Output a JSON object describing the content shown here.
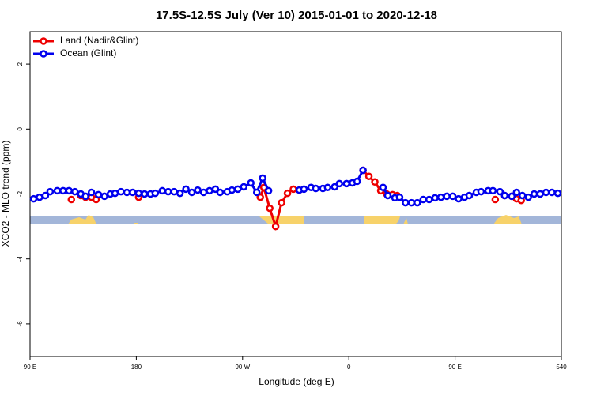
{
  "chart_data": {
    "type": "line",
    "title": "17.5S-12.5S July (Ver 10)   2015-01-01 to 2020-12-18",
    "x_label": "Longitude (deg E)",
    "y_label": "XCO2 - MLO trend (ppm)",
    "xlim": [
      90,
      540
    ],
    "xticks": [
      {
        "value": 90,
        "label": "90 E"
      },
      180,
      {
        "value": 270,
        "label": "90 W"
      },
      {
        "value": 360,
        "label": "0"
      },
      {
        "value": 450,
        "label": "90 E"
      },
      540
    ],
    "ylim": [
      -7,
      3
    ],
    "yticks": [
      -6,
      -4,
      -2,
      0,
      2
    ],
    "legend": "top-left",
    "series": [
      {
        "name": "Land (Nadir&Glint)",
        "color": "#ee0000",
        "x": [
          125,
          null,
          133,
          137,
          142,
          146,
          null,
          182,
          null,
          285,
          288,
          293,
          298,
          303,
          308,
          313,
          318,
          null,
          372,
          377,
          382,
          387,
          392,
          397,
          401,
          null,
          484,
          null,
          492,
          498,
          502,
          506
        ],
        "values": [
          -2.17,
          null,
          -2.05,
          -2.1,
          -2.1,
          -2.17,
          null,
          -2.1,
          null,
          -2.1,
          -1.8,
          -2.44,
          -3.0,
          -2.27,
          -1.98,
          -1.85,
          -1.88,
          null,
          -1.27,
          -1.46,
          -1.63,
          -1.9,
          -2.0,
          -2.02,
          -2.05,
          null,
          -2.17,
          null,
          -2.05,
          -2.07,
          -2.15,
          -2.2
        ]
      },
      {
        "name": "Ocean (Glint)",
        "color": "#0000ee",
        "x": [
          93,
          98,
          103,
          107,
          113,
          118,
          123,
          128,
          133,
          137,
          142,
          148,
          153,
          158,
          162,
          167,
          172,
          177,
          182,
          187,
          192,
          196,
          202,
          207,
          212,
          217,
          222,
          227,
          232,
          237,
          242,
          247,
          251,
          257,
          261,
          266,
          271,
          277,
          282,
          287,
          292,
          null,
          318,
          322,
          328,
          332,
          338,
          342,
          348,
          352,
          358,
          363,
          367,
          372,
          null,
          389,
          393,
          399,
          403,
          408,
          413,
          418,
          423,
          428,
          433,
          438,
          443,
          448,
          453,
          458,
          462,
          468,
          472,
          478,
          482,
          488,
          492,
          498,
          502,
          507,
          512,
          517,
          522,
          527,
          532,
          537
        ],
        "values": [
          -2.15,
          -2.1,
          -2.05,
          -1.93,
          -1.9,
          -1.9,
          -1.9,
          -1.93,
          -2.0,
          -2.07,
          -1.95,
          -2.02,
          -2.07,
          -2.0,
          -1.98,
          -1.93,
          -1.95,
          -1.95,
          -1.98,
          -2.0,
          -2.0,
          -1.98,
          -1.9,
          -1.93,
          -1.93,
          -1.98,
          -1.85,
          -1.95,
          -1.88,
          -1.95,
          -1.9,
          -1.85,
          -1.95,
          -1.93,
          -1.88,
          -1.85,
          -1.78,
          -1.66,
          -1.95,
          -1.51,
          -1.9,
          null,
          -1.88,
          -1.85,
          -1.8,
          -1.83,
          -1.83,
          -1.8,
          -1.78,
          -1.68,
          -1.68,
          -1.66,
          -1.61,
          -1.27,
          null,
          -1.8,
          -2.05,
          -2.12,
          -2.1,
          -2.27,
          -2.27,
          -2.27,
          -2.17,
          -2.17,
          -2.12,
          -2.1,
          -2.07,
          -2.07,
          -2.15,
          -2.1,
          -2.05,
          -1.95,
          -1.93,
          -1.9,
          -1.9,
          -1.93,
          -2.05,
          -2.07,
          -1.95,
          -2.05,
          -2.1,
          -2.0,
          -2.0,
          -1.95,
          -1.95,
          -1.98
        ]
      }
    ]
  }
}
